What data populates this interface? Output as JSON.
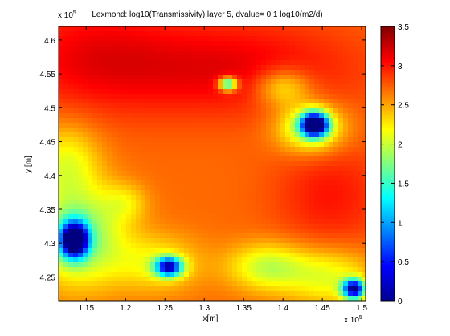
{
  "chart_data": {
    "type": "heatmap",
    "title": "Lexmond: log10(Transmissivity) layer 5, dvalue= 0.1 log10(m2/d)",
    "xlabel": "x[m]",
    "ylabel": "y [m]",
    "x_exponent_label": "x 10",
    "x_exponent_power": "5",
    "y_exponent_label": "x 10",
    "y_exponent_power": "5",
    "xlim": [
      1.115,
      1.505
    ],
    "ylim": [
      4.215,
      4.62
    ],
    "xticks": [
      {
        "value": 1.15,
        "label": "1.15"
      },
      {
        "value": 1.2,
        "label": "1.2"
      },
      {
        "value": 1.25,
        "label": "1.25"
      },
      {
        "value": 1.3,
        "label": "1.3"
      },
      {
        "value": 1.35,
        "label": "1.35"
      },
      {
        "value": 1.4,
        "label": "1.4"
      },
      {
        "value": 1.45,
        "label": "1.45"
      },
      {
        "value": 1.5,
        "label": "1.5"
      }
    ],
    "yticks": [
      {
        "value": 4.25,
        "label": "4.25"
      },
      {
        "value": 4.3,
        "label": "4.3"
      },
      {
        "value": 4.35,
        "label": "4.35"
      },
      {
        "value": 4.4,
        "label": "4.4"
      },
      {
        "value": 4.45,
        "label": "4.45"
      },
      {
        "value": 4.5,
        "label": "4.5"
      },
      {
        "value": 4.55,
        "label": "4.55"
      },
      {
        "value": 4.6,
        "label": "4.6"
      }
    ],
    "colorbar": {
      "range": [
        0,
        3.5
      ],
      "colormap": "jet",
      "ticks": [
        {
          "value": 0,
          "label": "0"
        },
        {
          "value": 0.5,
          "label": "0.5"
        },
        {
          "value": 1,
          "label": "1"
        },
        {
          "value": 1.5,
          "label": "1.5"
        },
        {
          "value": 2,
          "label": "2"
        },
        {
          "value": 2.5,
          "label": "2.5"
        },
        {
          "value": 3,
          "label": "3"
        },
        {
          "value": 3.5,
          "label": "3.5"
        }
      ]
    },
    "field_background": 2.7,
    "features": [
      {
        "name": "high-ne-band",
        "x": 1.32,
        "y": 4.56,
        "sx": 0.12,
        "sy": 0.05,
        "amp": 0.45
      },
      {
        "name": "high-northwest",
        "x": 1.15,
        "y": 4.58,
        "sx": 0.07,
        "sy": 0.06,
        "amp": 0.3
      },
      {
        "name": "high-east",
        "x": 1.46,
        "y": 4.37,
        "sx": 0.05,
        "sy": 0.06,
        "amp": 0.3
      },
      {
        "name": "low-ne-pit",
        "x": 1.44,
        "y": 4.475,
        "sx": 0.012,
        "sy": 0.012,
        "amp": -3.0
      },
      {
        "name": "low-ne-ring",
        "x": 1.435,
        "y": 4.47,
        "sx": 0.03,
        "sy": 0.025,
        "amp": -0.9
      },
      {
        "name": "low-sw-pit",
        "x": 1.135,
        "y": 4.305,
        "sx": 0.012,
        "sy": 0.018,
        "amp": -2.8
      },
      {
        "name": "low-sw-ring",
        "x": 1.14,
        "y": 4.31,
        "sx": 0.04,
        "sy": 0.05,
        "amp": -1.0
      },
      {
        "name": "low-west",
        "x": 1.125,
        "y": 4.42,
        "sx": 0.03,
        "sy": 0.04,
        "amp": -0.55
      },
      {
        "name": "low-south-centre",
        "x": 1.255,
        "y": 4.265,
        "sx": 0.012,
        "sy": 0.01,
        "amp": -2.2
      },
      {
        "name": "low-south-centre-ring",
        "x": 1.24,
        "y": 4.27,
        "sx": 0.04,
        "sy": 0.03,
        "amp": -0.5
      },
      {
        "name": "low-se-pit",
        "x": 1.49,
        "y": 4.232,
        "sx": 0.01,
        "sy": 0.01,
        "amp": -2.4
      },
      {
        "name": "low-se-ring",
        "x": 1.46,
        "y": 4.25,
        "sx": 0.04,
        "sy": 0.03,
        "amp": -0.6
      },
      {
        "name": "low-south-east",
        "x": 1.38,
        "y": 4.265,
        "sx": 0.035,
        "sy": 0.025,
        "amp": -0.7
      },
      {
        "name": "low-north-centre",
        "x": 1.33,
        "y": 4.535,
        "sx": 0.008,
        "sy": 0.007,
        "amp": -1.6
      },
      {
        "name": "low-upper-right",
        "x": 1.4,
        "y": 4.53,
        "sx": 0.025,
        "sy": 0.02,
        "amp": -0.6
      },
      {
        "name": "low-mid-left",
        "x": 1.2,
        "y": 4.36,
        "sx": 0.02,
        "sy": 0.02,
        "amp": -0.35
      }
    ]
  }
}
